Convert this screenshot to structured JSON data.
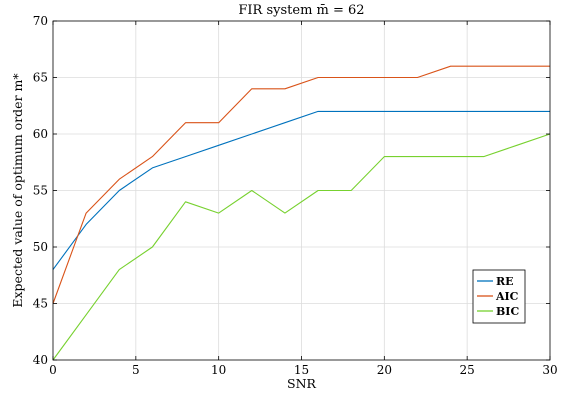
{
  "chart_data": {
    "type": "line",
    "title": "FIR system m̄ = 62",
    "xlabel": "SNR",
    "ylabel": "Expected value of optimum order m*",
    "xlim": [
      0,
      30
    ],
    "ylim": [
      40,
      70
    ],
    "xticks": [
      0,
      5,
      10,
      15,
      20,
      25,
      30
    ],
    "yticks": [
      40,
      45,
      50,
      55,
      60,
      65,
      70
    ],
    "grid": true,
    "legend_position": "lower-right",
    "series": [
      {
        "name": "RE",
        "color": "#0072BD",
        "x": [
          0,
          2,
          4,
          6,
          8,
          10,
          12,
          14,
          16,
          18,
          20,
          22,
          24,
          26,
          28,
          30
        ],
        "y": [
          48,
          52,
          55,
          57,
          58,
          59,
          60,
          61,
          62,
          62,
          62,
          62,
          62,
          62,
          62,
          62
        ]
      },
      {
        "name": "AIC",
        "color": "#D95319",
        "x": [
          0,
          2,
          4,
          6,
          8,
          10,
          12,
          14,
          16,
          18,
          20,
          22,
          24,
          26,
          28,
          30
        ],
        "y": [
          45,
          53,
          56,
          58,
          61,
          61,
          64,
          64,
          65,
          65,
          65,
          65,
          66,
          66,
          66,
          66
        ]
      },
      {
        "name": "BIC",
        "color": "#77D12F",
        "x": [
          0,
          2,
          4,
          6,
          8,
          10,
          12,
          14,
          16,
          18,
          20,
          22,
          24,
          26,
          28,
          30
        ],
        "y": [
          40,
          44,
          48,
          50,
          54,
          53,
          55,
          53,
          55,
          55,
          58,
          58,
          58,
          58,
          59,
          60
        ]
      }
    ]
  }
}
